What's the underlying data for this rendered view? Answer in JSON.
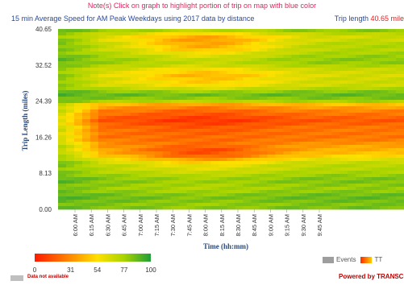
{
  "header": {
    "note": "Note(s)  Click on graph to highlight portion of trip on map with blue color",
    "title": "15 min Average Speed for AM Peak Weekdays using 2017 data by distance",
    "trip_label": "Trip length",
    "trip_value": "40.65 mile"
  },
  "chart_data": {
    "type": "heatmap",
    "xlabel": "Time (hh:mm)",
    "ylabel": "Trip Length (miles)",
    "x_ticks": [
      "6:00 AM",
      "6:15 AM",
      "6:30 AM",
      "6:45 AM",
      "7:00 AM",
      "7:15 AM",
      "7:30 AM",
      "7:45 AM",
      "8:00 AM",
      "8:15 AM",
      "8:30 AM",
      "8:45 AM",
      "9:00 AM",
      "9:15 AM",
      "9:30 AM",
      "9:45 AM"
    ],
    "y_ticks": [
      "0.00",
      "8.13",
      "16.26",
      "24.39",
      "32.52",
      "40.65"
    ],
    "ylim": [
      0,
      40.65
    ],
    "color_scale": {
      "ticks": [
        0,
        31,
        54,
        77,
        100
      ],
      "colors": [
        "#ff1a00",
        "#ff8c00",
        "#ffe000",
        "#a8d400",
        "#1f9e3a"
      ]
    },
    "legend": {
      "events_label": "Events",
      "tt_label": "TT",
      "not_available": "Data not available"
    },
    "speed_profile": {
      "distance_miles": [
        0,
        3,
        6,
        8.13,
        10,
        12,
        13.5,
        15,
        16.26,
        18,
        20,
        22,
        23.5,
        24.39,
        26,
        28,
        30,
        32.52,
        35,
        37,
        38.5,
        40.65
      ],
      "base_speed": [
        88,
        85,
        82,
        80,
        70,
        55,
        40,
        30,
        28,
        22,
        20,
        24,
        45,
        82,
        86,
        70,
        62,
        78,
        80,
        72,
        66,
        85
      ],
      "peak_speed": [
        84,
        80,
        76,
        72,
        55,
        22,
        12,
        22,
        25,
        14,
        10,
        15,
        35,
        78,
        84,
        55,
        38,
        70,
        60,
        35,
        34,
        80
      ]
    }
  },
  "footer": {
    "powered": "Powered by TRANSCOM"
  }
}
